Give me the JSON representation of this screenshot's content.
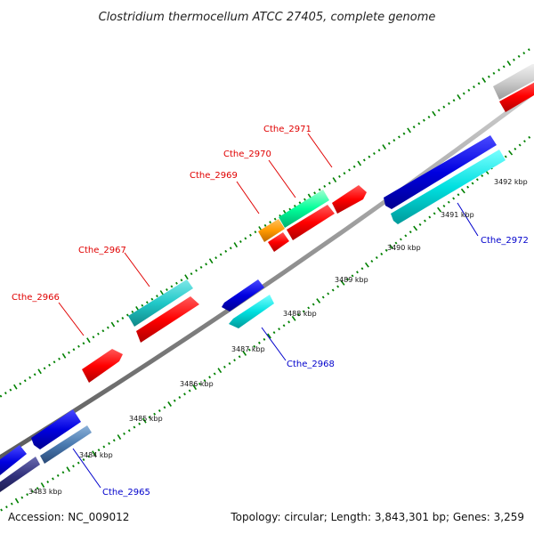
{
  "title": "Clostridium thermocellum ATCC 27405, complete genome",
  "footer": {
    "accession": "Accession: NC_009012",
    "summary": "Topology: circular; Length: 3,843,301 bp; Genes: 3,259"
  },
  "ticks": [
    "3483 kbp",
    "3484 kbp",
    "3485 kbp",
    "3486 kbp",
    "3487 kbp",
    "3488 kbp",
    "3489 kbp",
    "3490 kbp",
    "3491 kbp",
    "3492 kbp"
  ],
  "gene_labels": {
    "cthe_2965": "Cthe_2965",
    "cthe_2966": "Cthe_2966",
    "cthe_2967": "Cthe_2967",
    "cthe_2968": "Cthe_2968",
    "cthe_2969": "Cthe_2969",
    "cthe_2970": "Cthe_2970",
    "cthe_2971": "Cthe_2971",
    "cthe_2972": "Cthe_2972"
  },
  "colors": {
    "backbone": "#8c8c8c",
    "forward_cds": "#ff0000",
    "reverse_cds": "#0000e0",
    "reverse_cds_alt": "#00e0e0",
    "highlight": "#00ff99",
    "highlight_alt": "#ff9900",
    "tick": "#008000",
    "label_forward": "#e00000",
    "label_reverse": "#0000cc"
  }
}
